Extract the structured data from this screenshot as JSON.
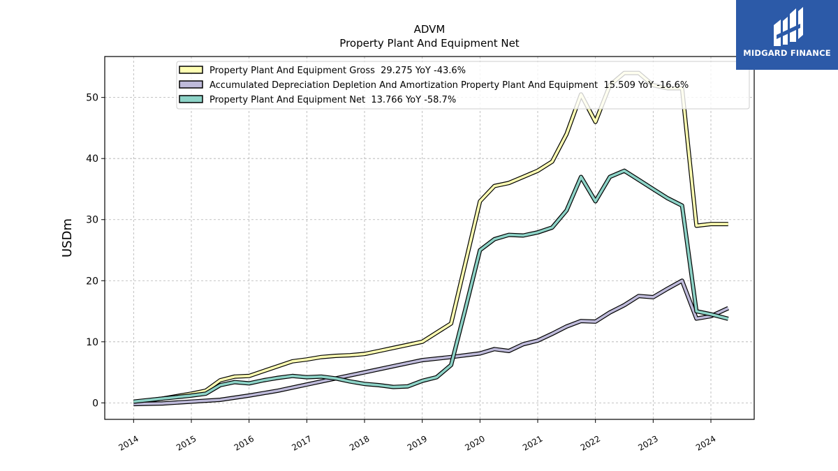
{
  "chart_data": {
    "type": "line",
    "title": "ADVM",
    "subtitle": "Property Plant And Equipment Net",
    "ylabel": "USDm",
    "xlabel": "",
    "xlim": [
      2013.5,
      2024.75
    ],
    "ylim": [
      -2.7,
      56.7
    ],
    "yticks": [
      0,
      10,
      20,
      30,
      40,
      50
    ],
    "xticks": [
      "2014",
      "2015",
      "2016",
      "2017",
      "2018",
      "2019",
      "2020",
      "2021",
      "2022",
      "2023",
      "2024"
    ],
    "grid": true,
    "legend_position": "top",
    "series": [
      {
        "name": "Property Plant And Equipment Gross",
        "legend": "Property Plant And Equipment Gross  29.275 YoY -43.6%",
        "color": "#ffffb3",
        "x": [
          2014.0,
          2014.5,
          2015.0,
          2015.25,
          2015.5,
          2015.75,
          2016.0,
          2016.25,
          2016.5,
          2016.75,
          2017.0,
          2017.25,
          2017.5,
          2017.75,
          2018.0,
          2018.25,
          2018.5,
          2018.75,
          2019.0,
          2019.25,
          2019.5,
          2019.75,
          2020.0,
          2020.25,
          2020.5,
          2020.75,
          2021.0,
          2021.25,
          2021.5,
          2021.75,
          2022.0,
          2022.25,
          2022.5,
          2022.75,
          2023.0,
          2023.25,
          2023.5,
          2023.75,
          2024.0,
          2024.3
        ],
        "values": [
          0.1,
          0.7,
          1.5,
          2.0,
          3.7,
          4.3,
          4.4,
          5.2,
          6.0,
          6.8,
          7.1,
          7.5,
          7.7,
          7.8,
          8.0,
          8.5,
          9.0,
          9.5,
          10.0,
          11.5,
          13.0,
          23.0,
          33.0,
          35.5,
          36.0,
          37.0,
          38.0,
          39.5,
          44.0,
          50.5,
          46.0,
          52.0,
          54.0,
          54.0,
          52.0,
          51.5,
          51.5,
          29.0,
          29.275,
          29.275
        ]
      },
      {
        "name": "Accumulated Depreciation Depletion And Amortization Property Plant And Equipment",
        "legend": "Accumulated Depreciation Depletion And Amortization Property Plant And Equipment  15.509 YoY -16.6%",
        "color": "#bebada",
        "x": [
          2014.0,
          2014.5,
          2015.0,
          2015.5,
          2016.0,
          2016.5,
          2017.0,
          2017.5,
          2018.0,
          2018.5,
          2019.0,
          2019.5,
          2020.0,
          2020.25,
          2020.5,
          2020.75,
          2021.0,
          2021.25,
          2021.5,
          2021.75,
          2022.0,
          2022.25,
          2022.5,
          2022.75,
          2023.0,
          2023.25,
          2023.5,
          2023.75,
          2024.0,
          2024.3
        ],
        "values": [
          -0.2,
          -0.1,
          0.2,
          0.5,
          1.2,
          2.0,
          3.0,
          4.0,
          5.0,
          6.0,
          7.0,
          7.5,
          8.1,
          8.8,
          8.5,
          9.6,
          10.2,
          11.3,
          12.5,
          13.4,
          13.3,
          14.8,
          16.0,
          17.5,
          17.3,
          18.7,
          20.0,
          13.8,
          14.2,
          15.509
        ]
      },
      {
        "name": "Property Plant And Equipment Net",
        "legend": "Property Plant And Equipment Net  13.766 YoY -58.7%",
        "color": "#8dd3c7",
        "x": [
          2014.0,
          2014.5,
          2015.0,
          2015.25,
          2015.5,
          2015.75,
          2016.0,
          2016.25,
          2016.5,
          2016.75,
          2017.0,
          2017.25,
          2017.5,
          2017.75,
          2018.0,
          2018.25,
          2018.5,
          2018.75,
          2019.0,
          2019.25,
          2019.5,
          2019.75,
          2020.0,
          2020.25,
          2020.5,
          2020.75,
          2021.0,
          2021.25,
          2021.5,
          2021.75,
          2022.0,
          2022.25,
          2022.5,
          2022.75,
          2023.0,
          2023.25,
          2023.5,
          2023.75,
          2024.0,
          2024.3
        ],
        "values": [
          0.2,
          0.7,
          1.2,
          1.5,
          2.9,
          3.4,
          3.2,
          3.7,
          4.1,
          4.4,
          4.2,
          4.3,
          4.0,
          3.5,
          3.1,
          2.9,
          2.6,
          2.7,
          3.6,
          4.2,
          6.2,
          15.5,
          25.0,
          26.8,
          27.5,
          27.4,
          27.9,
          28.7,
          31.5,
          37.0,
          33.0,
          37.0,
          38.0,
          36.5,
          35.0,
          33.5,
          32.3,
          15.0,
          14.5,
          13.766
        ]
      }
    ]
  },
  "branding": {
    "logo_text": "MIDGARD FINANCE"
  }
}
